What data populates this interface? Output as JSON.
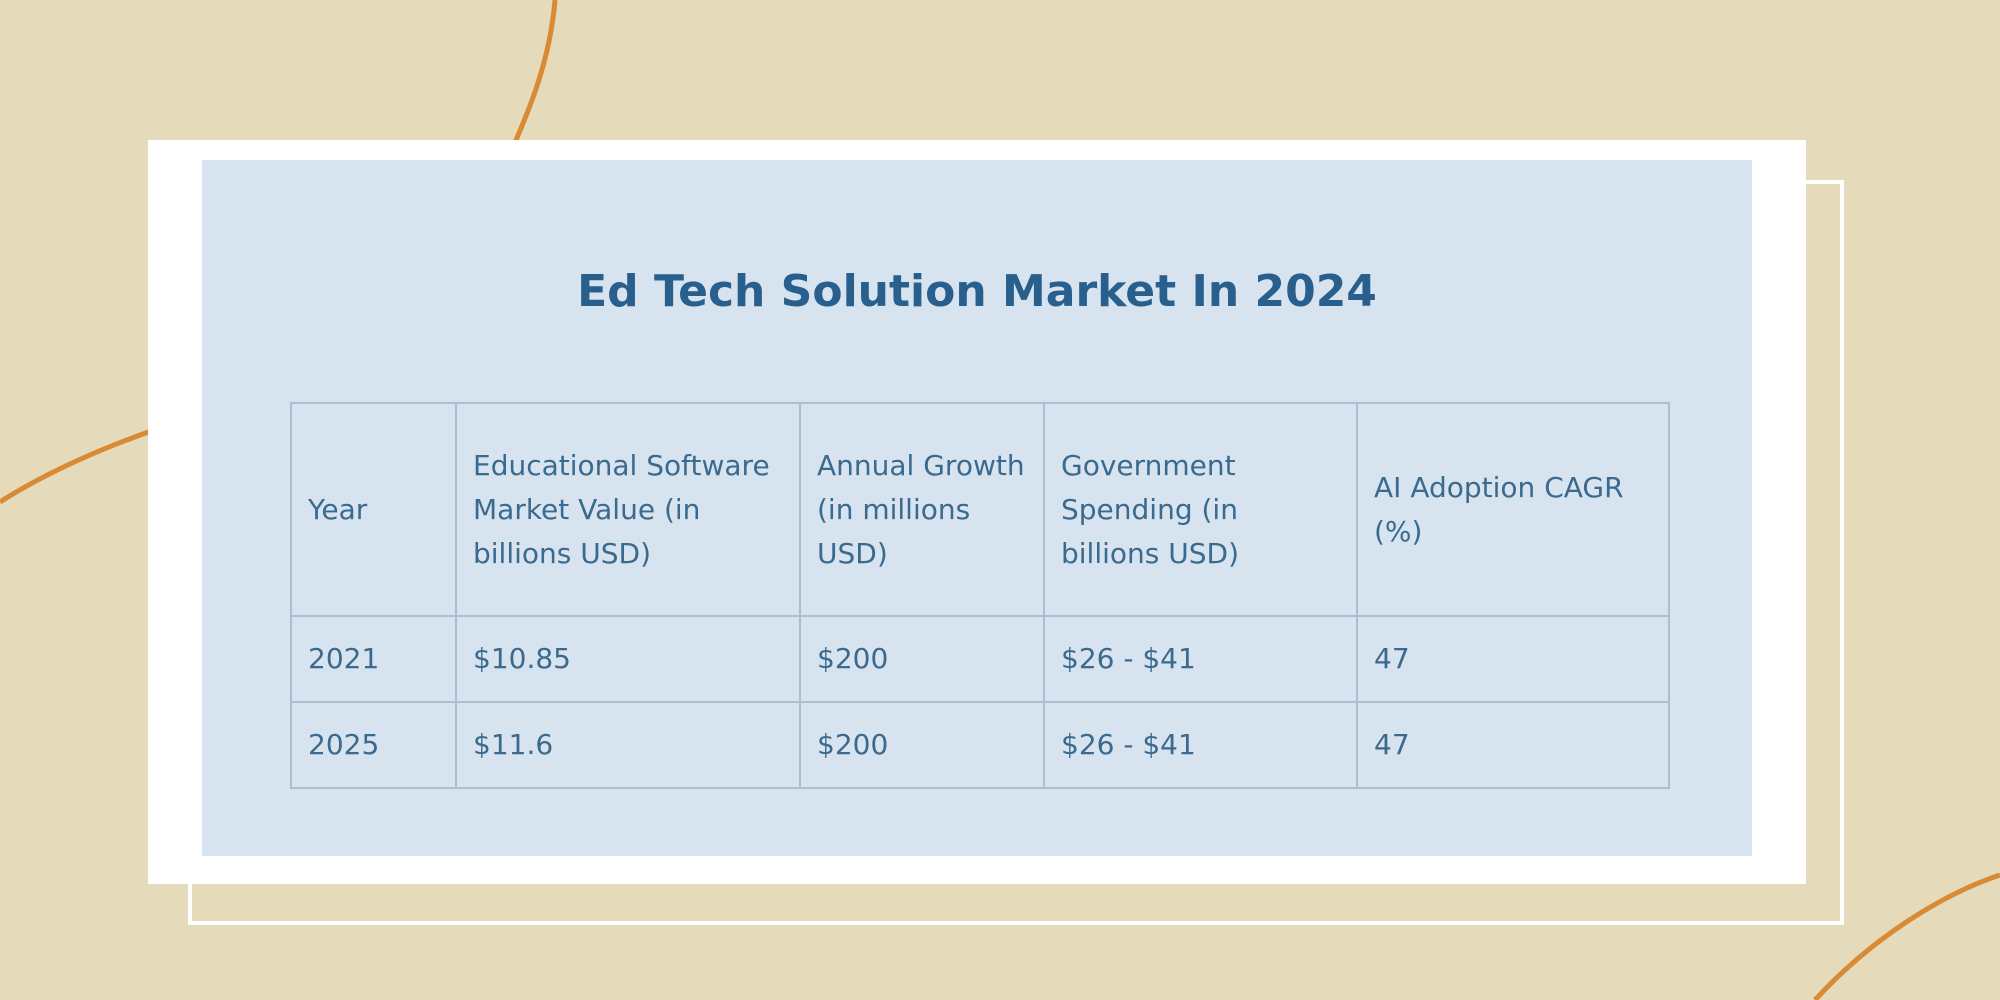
{
  "colors": {
    "background": "#e5dab9",
    "curve_accent": "#d98a35",
    "card": "#ffffff",
    "panel": "#d7e4f0",
    "title": "#285f8c",
    "table_text": "#3a6a8e",
    "table_border": "#a9bfd2"
  },
  "chart_data": {
    "type": "table",
    "title": "Ed Tech Solution Market In 2024",
    "columns": [
      "Year",
      "Educational Software Market Value (in billions USD)",
      "Annual Growth (in millions USD)",
      "Government Spending (in billions USD)",
      "AI Adoption CAGR (%)"
    ],
    "rows": [
      [
        "2021",
        "$10.85",
        "$200",
        "$26 - $41",
        "47"
      ],
      [
        "2025",
        "$11.6",
        "$200",
        "$26 - $41",
        "47"
      ]
    ]
  }
}
